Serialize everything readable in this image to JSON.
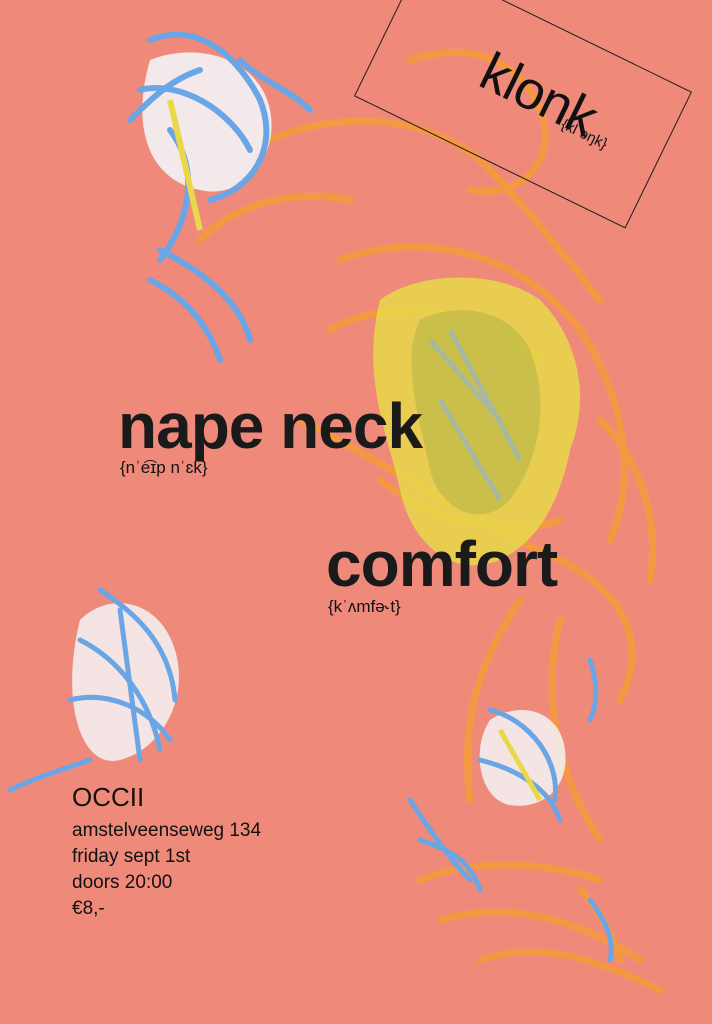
{
  "palette": {
    "background": "#ef8a7b",
    "text": "#111111",
    "crayon_blue": "#6aa6e6",
    "crayon_yellow": "#e8d84a",
    "crayon_orange": "#f59a3c",
    "highlight_white": "#f4f3f6"
  },
  "logo": {
    "word": "klonk",
    "pronunciation": "{klˈɔŋk}"
  },
  "bands": [
    {
      "name": "nape neck",
      "pronunciation": "{nˈe͡ɪp nˈɛk}"
    },
    {
      "name": "comfort",
      "pronunciation": "{kˈʌmfə˞t}"
    }
  ],
  "venue": {
    "name": "OCCII",
    "address": "amstelveenseweg 134",
    "date": "friday sept 1st",
    "doors": "doors 20:00",
    "price": "€8,-"
  }
}
